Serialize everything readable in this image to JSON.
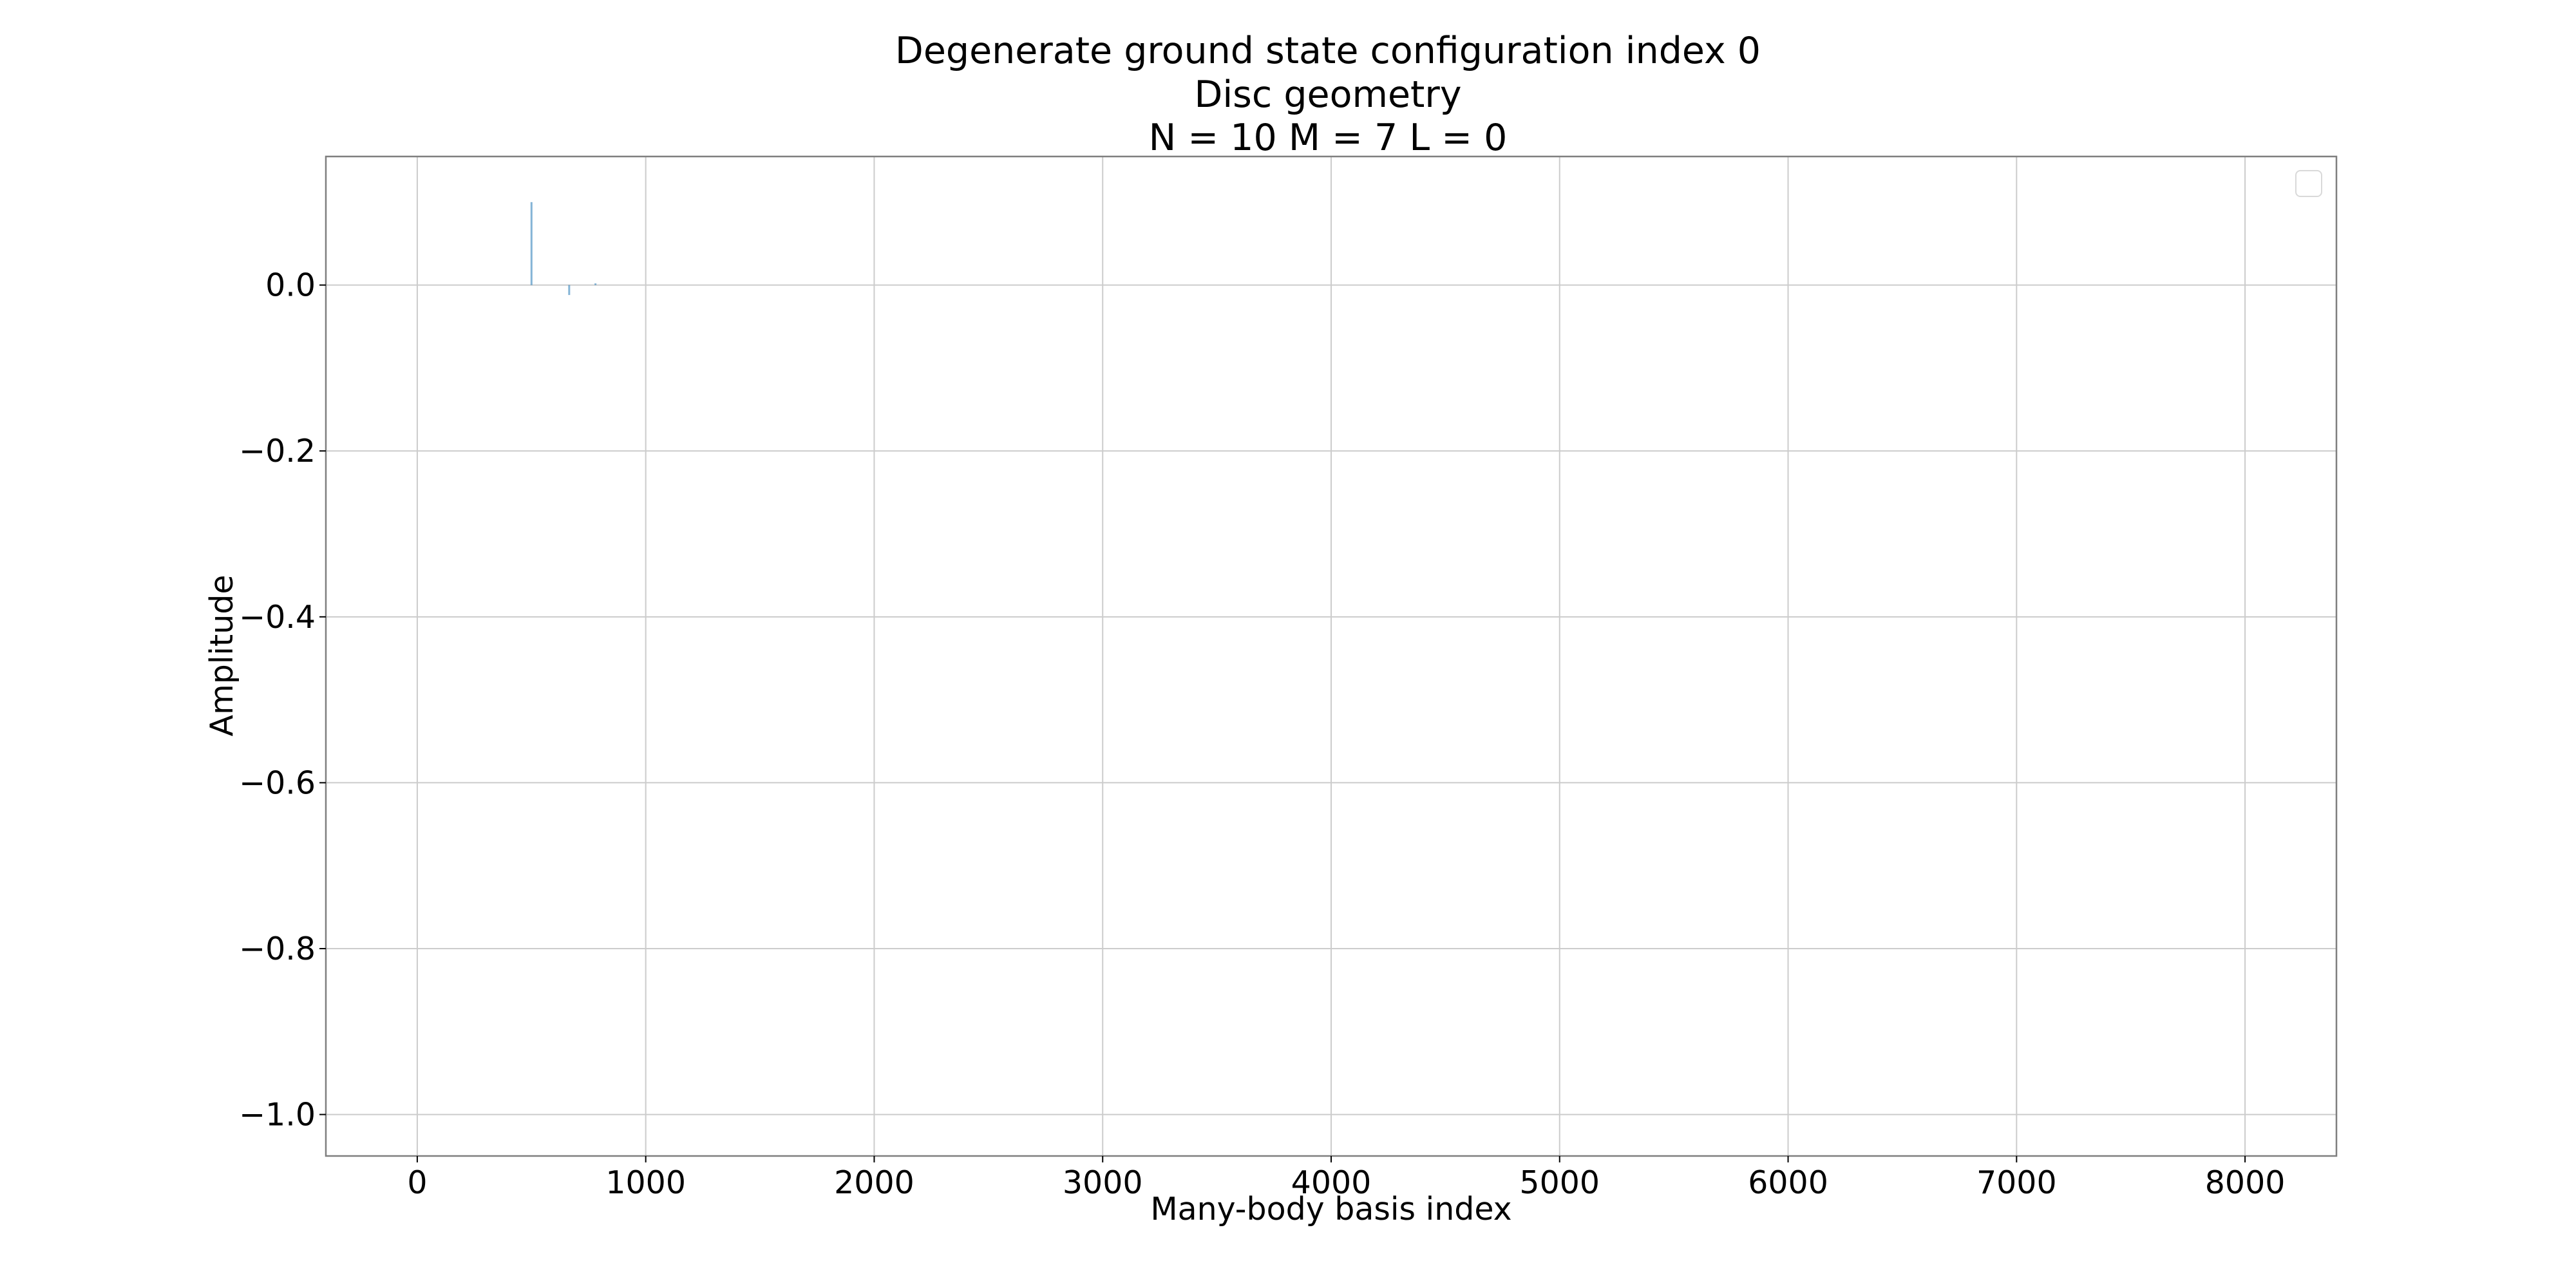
{
  "chart_data": {
    "type": "bar",
    "title_lines": [
      "Degenerate ground state configuration index 0",
      "Disc geometry",
      "N = 10   M = 7   L = 0"
    ],
    "xlabel": "Many-body basis index",
    "ylabel": "Amplitude",
    "xlim": [
      -400,
      8400
    ],
    "ylim": [
      -1.05,
      0.155
    ],
    "xticks": [
      0,
      1000,
      2000,
      3000,
      4000,
      5000,
      6000,
      7000,
      8000
    ],
    "xtick_labels": [
      "0",
      "1000",
      "2000",
      "3000",
      "4000",
      "5000",
      "6000",
      "7000",
      "8000"
    ],
    "yticks": [
      0.0,
      -0.2,
      -0.4,
      -0.6,
      -0.8,
      -1.0
    ],
    "ytick_labels": [
      "0.0",
      "−0.2",
      "−0.4",
      "−0.6",
      "−0.8",
      "−1.0"
    ],
    "grid": true,
    "legend_placement": "top-right",
    "legend_entries": [],
    "series": [
      {
        "color": "#1f77b4",
        "x": [
          500,
          665,
          780
        ],
        "values": [
          0.1,
          -0.012,
          0.002
        ]
      }
    ]
  }
}
